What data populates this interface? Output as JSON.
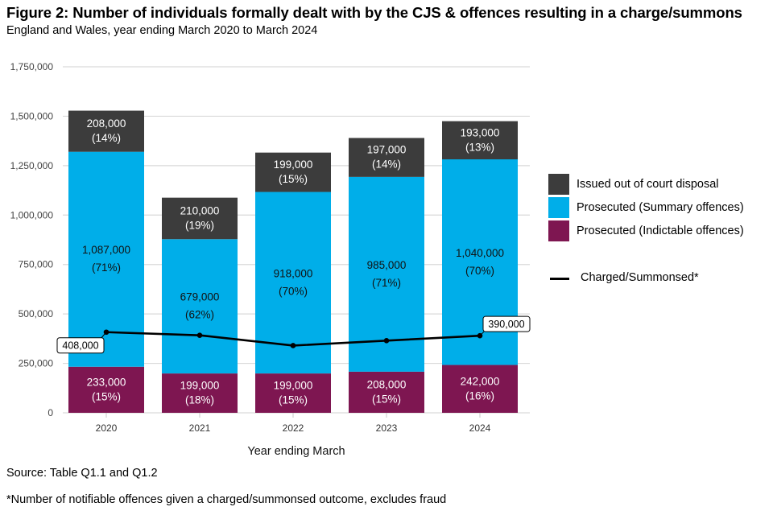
{
  "title": "Figure 2: Number of individuals formally dealt with by the CJS & offences resulting in a charge/summons",
  "subtitle": "England and Wales, year ending March 2020 to March 2024",
  "source": "Source: Table Q1.1 and Q1.2",
  "footnote": "*Number of notifiable offences given a charged/summonsed outcome, excludes fraud",
  "chart_data": {
    "type": "bar",
    "stacked": true,
    "title": "Figure 2: Number of individuals formally dealt with by the CJS & offences resulting in a charge/summons",
    "subtitle": "England and Wales, year ending March 2020 to March 2024",
    "xlabel": "Year ending March",
    "ylabel": "",
    "ylim": [
      0,
      1750000
    ],
    "yticks": [
      0,
      250000,
      500000,
      750000,
      1000000,
      1250000,
      1500000,
      1750000
    ],
    "ytick_labels": [
      "0",
      "250,000",
      "500,000",
      "750,000",
      "1,000,000",
      "1,250,000",
      "1,500,000",
      "1,750,000"
    ],
    "grid": true,
    "legend_position": "right",
    "categories": [
      "2020",
      "2021",
      "2022",
      "2023",
      "2024"
    ],
    "series": [
      {
        "name": "Prosecuted (Indictable offences)",
        "color": "#7e1651",
        "label_color": "#ffffff",
        "values": [
          233000,
          199000,
          199000,
          208000,
          242000
        ],
        "labels": [
          "233,000",
          "199,000",
          "199,000",
          "208,000",
          "242,000"
        ],
        "percent_labels": [
          "(15%)",
          "(18%)",
          "(15%)",
          "(15%)",
          "(16%)"
        ]
      },
      {
        "name": "Prosecuted (Summary offences)",
        "color": "#00aee9",
        "label_color": "#111111",
        "values": [
          1087000,
          679000,
          918000,
          985000,
          1040000
        ],
        "labels": [
          "1,087,000",
          "679,000",
          "918,000",
          "985,000",
          "1,040,000"
        ],
        "percent_labels": [
          "(71%)",
          "(62%)",
          "(70%)",
          "(71%)",
          "(70%)"
        ]
      },
      {
        "name": "Issued out of court disposal",
        "color": "#3c3c3c",
        "label_color": "#ffffff",
        "values": [
          208000,
          210000,
          199000,
          197000,
          193000
        ],
        "labels": [
          "208,000",
          "210,000",
          "199,000",
          "197,000",
          "193,000"
        ],
        "percent_labels": [
          "(14%)",
          "(19%)",
          "(15%)",
          "(14%)",
          "(13%)"
        ]
      }
    ],
    "line_series": {
      "name": "Charged/Summonsed*",
      "color": "#000000",
      "values": [
        408000,
        392000,
        340000,
        365000,
        390000
      ],
      "callouts": [
        {
          "index": 0,
          "label": "408,000"
        },
        {
          "index": 4,
          "label": "390,000"
        }
      ]
    }
  }
}
